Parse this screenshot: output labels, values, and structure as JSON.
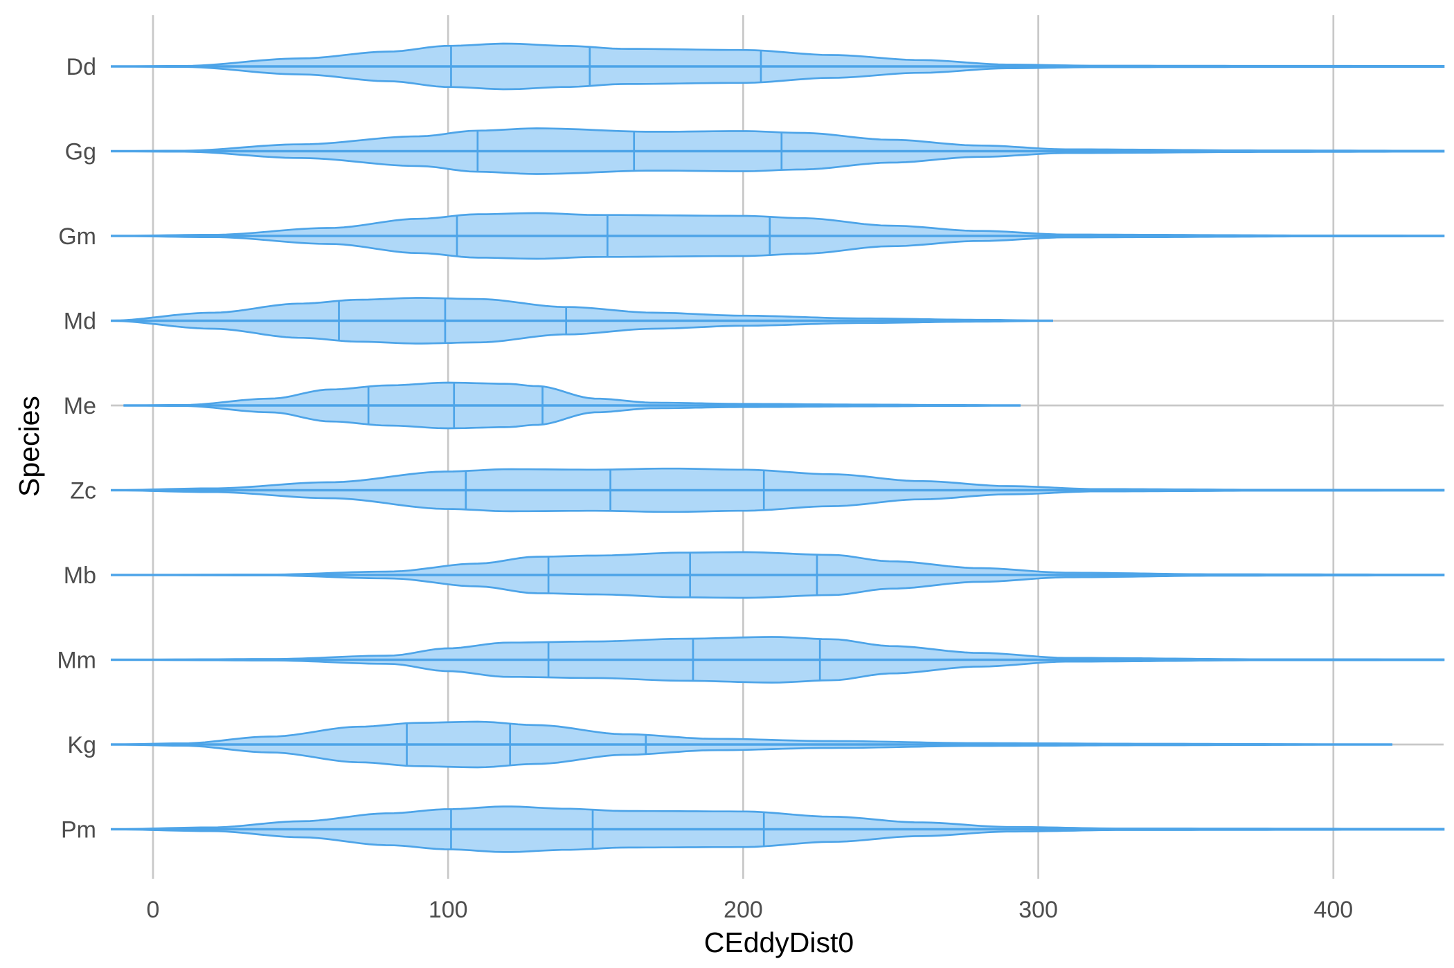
{
  "chart_data": {
    "type": "violin",
    "orientation": "horizontal",
    "xlabel": "CEddyDist0",
    "ylabel": "Species",
    "xlim": [
      -15,
      440
    ],
    "xticks": [
      0,
      100,
      200,
      300,
      400
    ],
    "grid": true,
    "legend": "none",
    "colors": {
      "fill": "#afd8f8",
      "stroke": "#4da4e8",
      "grid": "#c8c8c8",
      "text": "#4d4d4d"
    },
    "categories": [
      "Dd",
      "Gg",
      "Gm",
      "Md",
      "Me",
      "Zc",
      "Mb",
      "Mm",
      "Kg",
      "Pm"
    ],
    "series": [
      {
        "name": "Dd",
        "min": -15,
        "max": 440,
        "quartiles": [
          101,
          148,
          206
        ],
        "density": [
          [
            -15,
            0
          ],
          [
            10,
            0.02
          ],
          [
            50,
            0.35
          ],
          [
            80,
            0.65
          ],
          [
            100,
            0.9
          ],
          [
            120,
            1.0
          ],
          [
            140,
            0.9
          ],
          [
            160,
            0.77
          ],
          [
            200,
            0.72
          ],
          [
            230,
            0.5
          ],
          [
            260,
            0.28
          ],
          [
            290,
            0.08
          ],
          [
            320,
            0.03
          ],
          [
            380,
            0.025
          ],
          [
            440,
            0.02
          ]
        ]
      },
      {
        "name": "Gg",
        "min": -15,
        "max": 440,
        "quartiles": [
          110,
          163,
          213
        ],
        "density": [
          [
            -15,
            0
          ],
          [
            10,
            0.02
          ],
          [
            50,
            0.3
          ],
          [
            90,
            0.65
          ],
          [
            110,
            0.9
          ],
          [
            130,
            1.0
          ],
          [
            170,
            0.85
          ],
          [
            200,
            0.88
          ],
          [
            220,
            0.8
          ],
          [
            250,
            0.5
          ],
          [
            280,
            0.25
          ],
          [
            310,
            0.08
          ],
          [
            380,
            0.03
          ],
          [
            440,
            0.02
          ]
        ]
      },
      {
        "name": "Gm",
        "min": -15,
        "max": 440,
        "quartiles": [
          103,
          154,
          209
        ],
        "density": [
          [
            -15,
            0
          ],
          [
            20,
            0.05
          ],
          [
            60,
            0.35
          ],
          [
            90,
            0.75
          ],
          [
            110,
            0.95
          ],
          [
            130,
            1.0
          ],
          [
            150,
            0.92
          ],
          [
            200,
            0.88
          ],
          [
            220,
            0.78
          ],
          [
            250,
            0.45
          ],
          [
            280,
            0.22
          ],
          [
            310,
            0.06
          ],
          [
            400,
            0.02
          ],
          [
            440,
            0.015
          ]
        ]
      },
      {
        "name": "Md",
        "min": -15,
        "max": 305,
        "quartiles": [
          63,
          99,
          140
        ],
        "density": [
          [
            -15,
            0
          ],
          [
            20,
            0.35
          ],
          [
            50,
            0.75
          ],
          [
            70,
            0.92
          ],
          [
            90,
            1.0
          ],
          [
            110,
            0.95
          ],
          [
            140,
            0.6
          ],
          [
            170,
            0.35
          ],
          [
            200,
            0.22
          ],
          [
            240,
            0.1
          ],
          [
            280,
            0.04
          ],
          [
            305,
            0
          ]
        ]
      },
      {
        "name": "Me",
        "min": -10,
        "max": 294,
        "quartiles": [
          73,
          102,
          132
        ],
        "density": [
          [
            -10,
            0
          ],
          [
            10,
            0.02
          ],
          [
            40,
            0.3
          ],
          [
            60,
            0.7
          ],
          [
            80,
            0.88
          ],
          [
            100,
            1.0
          ],
          [
            120,
            0.95
          ],
          [
            130,
            0.85
          ],
          [
            150,
            0.3
          ],
          [
            170,
            0.12
          ],
          [
            200,
            0.07
          ],
          [
            240,
            0.04
          ],
          [
            270,
            0.02
          ],
          [
            294,
            0
          ]
        ]
      },
      {
        "name": "Zc",
        "min": -15,
        "max": 440,
        "quartiles": [
          106,
          155,
          207
        ],
        "density": [
          [
            -15,
            0
          ],
          [
            20,
            0.08
          ],
          [
            60,
            0.35
          ],
          [
            100,
            0.82
          ],
          [
            120,
            0.92
          ],
          [
            150,
            0.9
          ],
          [
            175,
            0.95
          ],
          [
            200,
            0.9
          ],
          [
            230,
            0.7
          ],
          [
            260,
            0.4
          ],
          [
            290,
            0.18
          ],
          [
            320,
            0.05
          ],
          [
            380,
            0.02
          ],
          [
            440,
            0.015
          ]
        ]
      },
      {
        "name": "Mb",
        "min": -15,
        "max": 440,
        "quartiles": [
          134,
          182,
          225
        ],
        "density": [
          [
            -15,
            0
          ],
          [
            40,
            0.02
          ],
          [
            80,
            0.15
          ],
          [
            110,
            0.5
          ],
          [
            130,
            0.8
          ],
          [
            150,
            0.85
          ],
          [
            180,
            0.98
          ],
          [
            200,
            1.0
          ],
          [
            230,
            0.88
          ],
          [
            250,
            0.6
          ],
          [
            280,
            0.3
          ],
          [
            310,
            0.1
          ],
          [
            360,
            0.03
          ],
          [
            440,
            0.02
          ]
        ]
      },
      {
        "name": "Mm",
        "min": -15,
        "max": 440,
        "quartiles": [
          134,
          183,
          226
        ],
        "density": [
          [
            -15,
            0
          ],
          [
            40,
            0.03
          ],
          [
            80,
            0.18
          ],
          [
            100,
            0.5
          ],
          [
            120,
            0.75
          ],
          [
            150,
            0.8
          ],
          [
            180,
            0.92
          ],
          [
            210,
            1.0
          ],
          [
            230,
            0.9
          ],
          [
            250,
            0.6
          ],
          [
            280,
            0.3
          ],
          [
            310,
            0.08
          ],
          [
            380,
            0.02
          ],
          [
            440,
            0.015
          ]
        ]
      },
      {
        "name": "Kg",
        "min": -15,
        "max": 420,
        "quartiles": [
          86,
          121,
          167
        ],
        "density": [
          [
            -15,
            0
          ],
          [
            10,
            0.05
          ],
          [
            40,
            0.35
          ],
          [
            70,
            0.78
          ],
          [
            90,
            0.95
          ],
          [
            110,
            1.0
          ],
          [
            130,
            0.85
          ],
          [
            160,
            0.45
          ],
          [
            190,
            0.25
          ],
          [
            230,
            0.15
          ],
          [
            280,
            0.06
          ],
          [
            340,
            0.03
          ],
          [
            420,
            0
          ]
        ]
      },
      {
        "name": "Pm",
        "min": -15,
        "max": 440,
        "quartiles": [
          101,
          149,
          207
        ],
        "density": [
          [
            -15,
            0
          ],
          [
            20,
            0.08
          ],
          [
            50,
            0.35
          ],
          [
            80,
            0.7
          ],
          [
            100,
            0.88
          ],
          [
            120,
            1.0
          ],
          [
            140,
            0.9
          ],
          [
            160,
            0.8
          ],
          [
            200,
            0.78
          ],
          [
            230,
            0.55
          ],
          [
            260,
            0.3
          ],
          [
            290,
            0.1
          ],
          [
            330,
            0.03
          ],
          [
            440,
            0.02
          ]
        ]
      }
    ]
  }
}
